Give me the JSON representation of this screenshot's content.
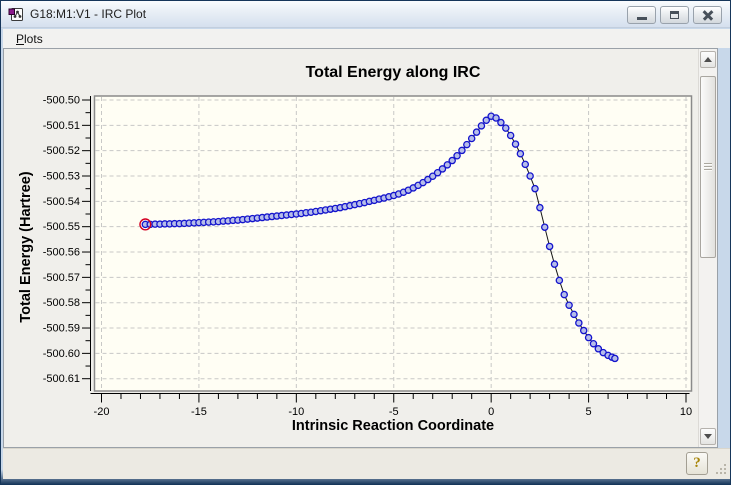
{
  "window": {
    "title": "G18:M1:V1 - IRC Plot",
    "icon": "gaussview-molecule-icon",
    "controls": [
      {
        "name": "minimize",
        "icon": "minimize-icon"
      },
      {
        "name": "restore",
        "icon": "restore-icon"
      },
      {
        "name": "close",
        "icon": "close-icon"
      }
    ]
  },
  "menu": {
    "items": [
      {
        "label": "Plots",
        "access_key": "P",
        "label_rest": "lots"
      }
    ]
  },
  "chart_data": {
    "type": "line",
    "title": "Total Energy along IRC",
    "xlabel": "Intrinsic Reaction Coordinate",
    "ylabel": "Total Energy (Hartree)",
    "xlim": [
      -20,
      10
    ],
    "ylim": [
      -500.61,
      -500.5
    ],
    "grid": "dashed-major-both-axes",
    "legend": "none",
    "x_ticks": [
      {
        "v": -20,
        "label": "-20"
      },
      {
        "v": -15,
        "label": "-15"
      },
      {
        "v": -10,
        "label": "-10"
      },
      {
        "v": -5,
        "label": "-5"
      },
      {
        "v": 0,
        "label": "0"
      },
      {
        "v": 5,
        "label": "5"
      },
      {
        "v": 10,
        "label": "10"
      }
    ],
    "x_minor_step": 1,
    "y_ticks": [
      {
        "v": -500.5,
        "label": "-500.50"
      },
      {
        "v": -500.51,
        "label": "-500.51"
      },
      {
        "v": -500.52,
        "label": "-500.52"
      },
      {
        "v": -500.53,
        "label": "-500.53"
      },
      {
        "v": -500.54,
        "label": "-500.54"
      },
      {
        "v": -500.55,
        "label": "-500.55"
      },
      {
        "v": -500.56,
        "label": "-500.56"
      },
      {
        "v": -500.57,
        "label": "-500.57"
      },
      {
        "v": -500.58,
        "label": "-500.58"
      },
      {
        "v": -500.59,
        "label": "-500.59"
      },
      {
        "v": -500.6,
        "label": "-500.60"
      },
      {
        "v": -500.61,
        "label": "-500.61"
      }
    ],
    "y_minor_step": 0.005,
    "colors": {
      "plot_bg": "#fffef4",
      "canvas_bg": "#f0efeb",
      "frame": "#8a8a8a",
      "grid": "#c8c8c6",
      "line": "#141414",
      "marker_stroke": "#1414cc",
      "marker_fill": "#b6bde9",
      "selected_ring": "#d40022",
      "text": "#000000"
    },
    "series": [
      {
        "name": "Total Energy along IRC path",
        "selected_point_index": 0,
        "points": [
          [
            -17.75,
            -500.5491
          ],
          [
            -17.5,
            -500.5491
          ],
          [
            -17.25,
            -500.549
          ],
          [
            -17,
            -500.549
          ],
          [
            -16.75,
            -500.5489
          ],
          [
            -16.5,
            -500.5489
          ],
          [
            -16.25,
            -500.5488
          ],
          [
            -16,
            -500.5488
          ],
          [
            -15.75,
            -500.5487
          ],
          [
            -15.5,
            -500.5486
          ],
          [
            -15.25,
            -500.5485
          ],
          [
            -15,
            -500.5484
          ],
          [
            -14.75,
            -500.5483
          ],
          [
            -14.5,
            -500.5482
          ],
          [
            -14.25,
            -500.5481
          ],
          [
            -14,
            -500.548
          ],
          [
            -13.75,
            -500.5478
          ],
          [
            -13.5,
            -500.5477
          ],
          [
            -13.25,
            -500.5475
          ],
          [
            -13,
            -500.5474
          ],
          [
            -12.75,
            -500.5472
          ],
          [
            -12.5,
            -500.547
          ],
          [
            -12.25,
            -500.5468
          ],
          [
            -12,
            -500.5466
          ],
          [
            -11.75,
            -500.5464
          ],
          [
            -11.5,
            -500.5462
          ],
          [
            -11.25,
            -500.546
          ],
          [
            -11,
            -500.5458
          ],
          [
            -10.75,
            -500.5456
          ],
          [
            -10.5,
            -500.5454
          ],
          [
            -10.25,
            -500.5452
          ],
          [
            -10,
            -500.545
          ],
          [
            -9.75,
            -500.5448
          ],
          [
            -9.5,
            -500.5445
          ],
          [
            -9.25,
            -500.5443
          ],
          [
            -9,
            -500.544
          ],
          [
            -8.75,
            -500.5437
          ],
          [
            -8.5,
            -500.5434
          ],
          [
            -8.25,
            -500.5431
          ],
          [
            -8,
            -500.5428
          ],
          [
            -7.75,
            -500.5425
          ],
          [
            -7.5,
            -500.5421
          ],
          [
            -7.25,
            -500.5417
          ],
          [
            -7,
            -500.5413
          ],
          [
            -6.75,
            -500.5409
          ],
          [
            -6.5,
            -500.5405
          ],
          [
            -6.25,
            -500.54
          ],
          [
            -6,
            -500.5396
          ],
          [
            -5.75,
            -500.5391
          ],
          [
            -5.5,
            -500.5387
          ],
          [
            -5.25,
            -500.5382
          ],
          [
            -5,
            -500.5377
          ],
          [
            -4.75,
            -500.5371
          ],
          [
            -4.5,
            -500.5364
          ],
          [
            -4.25,
            -500.5356
          ],
          [
            -4,
            -500.5347
          ],
          [
            -3.75,
            -500.5337
          ],
          [
            -3.5,
            -500.5326
          ],
          [
            -3.25,
            -500.5314
          ],
          [
            -3,
            -500.5301
          ],
          [
            -2.75,
            -500.5287
          ],
          [
            -2.5,
            -500.5272
          ],
          [
            -2.25,
            -500.5256
          ],
          [
            -2,
            -500.5239
          ],
          [
            -1.75,
            -500.522
          ],
          [
            -1.5,
            -500.5199
          ],
          [
            -1.25,
            -500.5176
          ],
          [
            -1,
            -500.5152
          ],
          [
            -0.75,
            -500.5127
          ],
          [
            -0.5,
            -500.5102
          ],
          [
            -0.25,
            -500.508
          ],
          [
            0,
            -500.5064
          ],
          [
            0.25,
            -500.5071
          ],
          [
            0.5,
            -500.5089
          ],
          [
            0.75,
            -500.5111
          ],
          [
            1,
            -500.514
          ],
          [
            1.25,
            -500.5174
          ],
          [
            1.5,
            -500.5212
          ],
          [
            1.75,
            -500.5254
          ],
          [
            2,
            -500.53
          ],
          [
            2.25,
            -500.535
          ],
          [
            2.5,
            -500.5425
          ],
          [
            2.75,
            -500.5502
          ],
          [
            3,
            -500.5578
          ],
          [
            3.25,
            -500.5648
          ],
          [
            3.5,
            -500.5712
          ],
          [
            3.75,
            -500.5768
          ],
          [
            4,
            -500.581
          ],
          [
            4.25,
            -500.5846
          ],
          [
            4.5,
            -500.588
          ],
          [
            4.75,
            -500.591
          ],
          [
            5,
            -500.5938
          ],
          [
            5.25,
            -500.5962
          ],
          [
            5.5,
            -500.5982
          ],
          [
            5.75,
            -500.5997
          ],
          [
            6,
            -500.6008
          ],
          [
            6.2,
            -500.6015
          ],
          [
            6.35,
            -500.602
          ]
        ]
      }
    ]
  },
  "scrollbar": {
    "orientation": "vertical",
    "icons": [
      "scroll-up-icon",
      "scroll-down-icon"
    ]
  },
  "statusbar": {
    "help_button": "?",
    "icons": [
      "help-icon",
      "resize-grip-icon"
    ]
  }
}
